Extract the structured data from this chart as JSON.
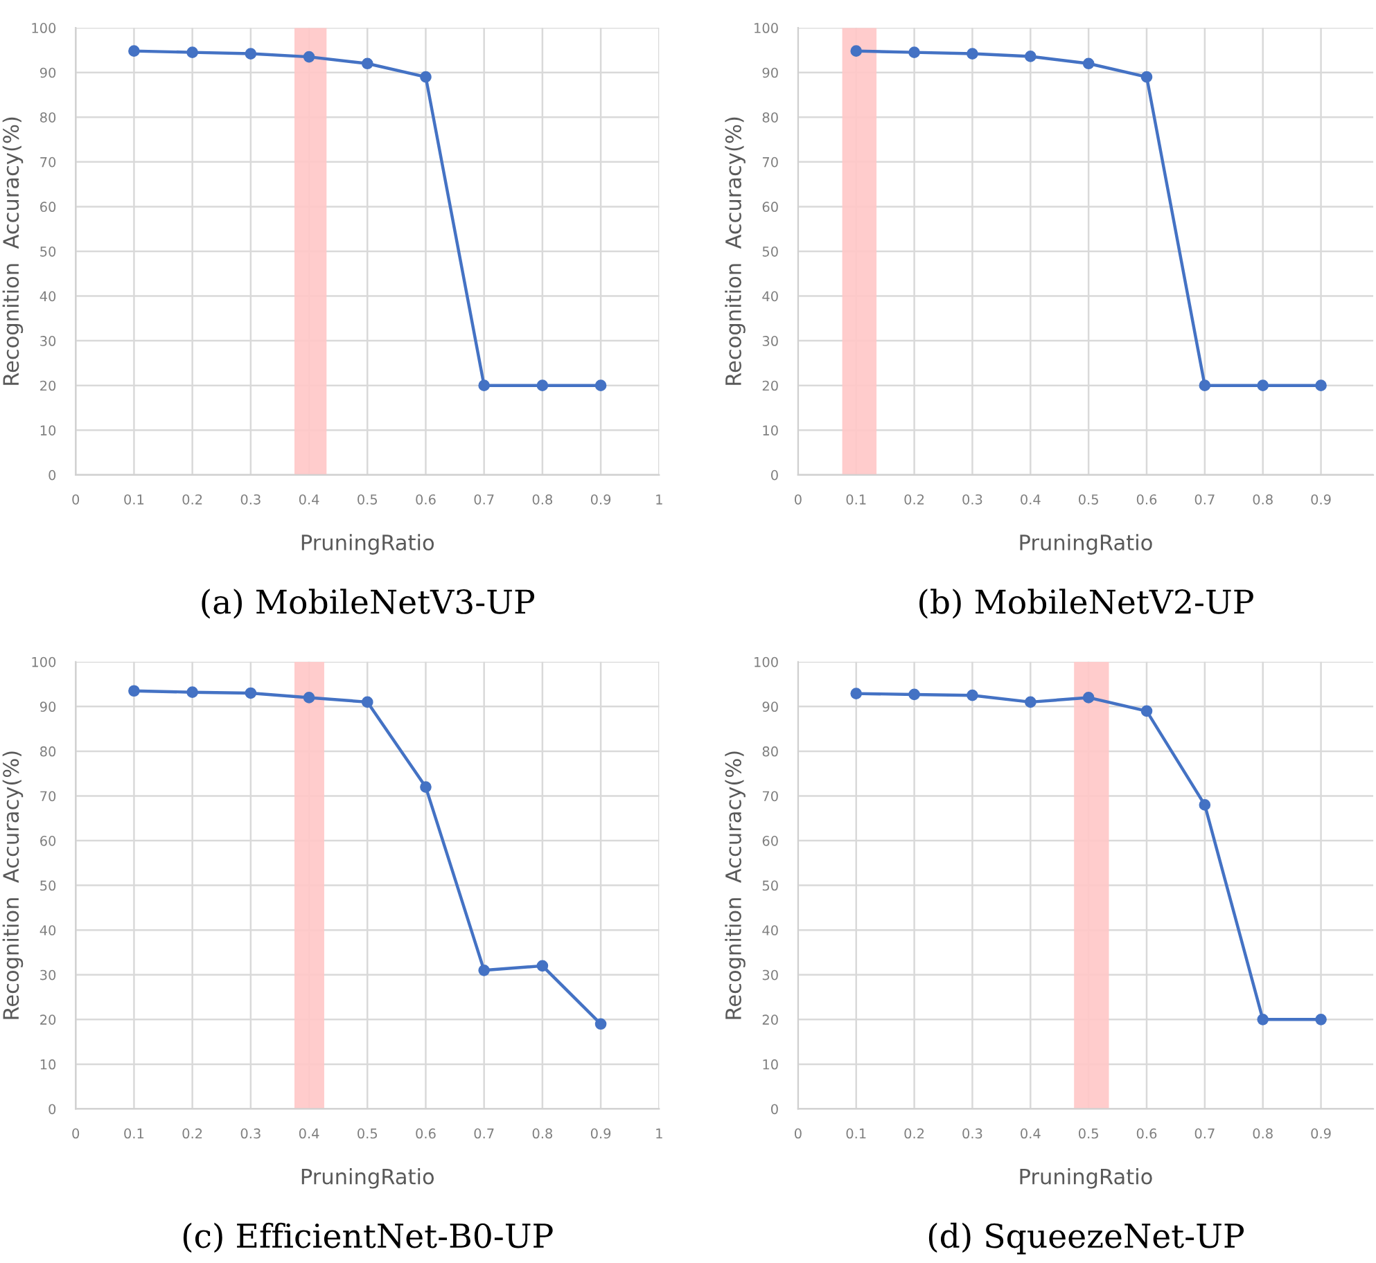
{
  "chart_data": [
    {
      "type": "line",
      "title": "(a) MobileNetV3-UP",
      "xlabel": "PruningRatio",
      "ylabel": "Recognition  Accuracy(%)",
      "x": [
        0.1,
        0.2,
        0.3,
        0.4,
        0.5,
        0.6,
        0.7,
        0.8,
        0.9
      ],
      "series": [
        {
          "color": "#4472c4",
          "values": [
            94.8,
            94.5,
            94.2,
            93.5,
            92,
            89,
            20,
            20,
            20
          ]
        }
      ],
      "xlim": [
        0,
        1
      ],
      "xticks": [
        0,
        0.1,
        0.2,
        0.3,
        0.4,
        0.5,
        0.6,
        0.7,
        0.8,
        0.9,
        1
      ],
      "ylim": [
        0,
        100
      ],
      "yticks": [
        0,
        10,
        20,
        30,
        40,
        50,
        60,
        70,
        80,
        90,
        100
      ],
      "bands": [
        {
          "axis": "x",
          "from": 0.375,
          "to": 0.43,
          "color": "#ffc7c7"
        }
      ],
      "grid": true,
      "marker": "circle",
      "line_style": "solid"
    },
    {
      "type": "line",
      "title": "(b) MobileNetV2-UP",
      "xlabel": "PruningRatio",
      "ylabel": "Recognition  Accuracy(%)",
      "x": [
        0.1,
        0.2,
        0.3,
        0.4,
        0.5,
        0.6,
        0.7,
        0.8,
        0.9
      ],
      "series": [
        {
          "color": "#4472c4",
          "values": [
            94.8,
            94.5,
            94.2,
            93.6,
            92,
            89,
            20,
            20,
            20
          ]
        }
      ],
      "xlim": [
        0,
        0.99
      ],
      "xticks": [
        0,
        0.1,
        0.2,
        0.3,
        0.4,
        0.5,
        0.6,
        0.7,
        0.8,
        0.9
      ],
      "ylim": [
        0,
        100
      ],
      "yticks": [
        0,
        10,
        20,
        30,
        40,
        50,
        60,
        70,
        80,
        90,
        100
      ],
      "bands": [
        {
          "axis": "x",
          "from": 0.076,
          "to": 0.135,
          "color": "#ffc7c7"
        }
      ],
      "grid": true,
      "marker": "circle",
      "line_style": "solid"
    },
    {
      "type": "line",
      "title": "(c) EfficientNet-B0-UP",
      "xlabel": "PruningRatio",
      "ylabel": "Recognition  Accuracy(%)",
      "x": [
        0.1,
        0.2,
        0.3,
        0.4,
        0.5,
        0.6,
        0.7,
        0.8,
        0.9
      ],
      "series": [
        {
          "color": "#4472c4",
          "values": [
            93.5,
            93.2,
            93,
            92,
            91,
            72,
            31,
            32,
            19
          ]
        }
      ],
      "xlim": [
        0,
        1
      ],
      "xticks": [
        0,
        0.1,
        0.2,
        0.3,
        0.4,
        0.5,
        0.6,
        0.7,
        0.8,
        0.9,
        1
      ],
      "ylim": [
        0,
        100
      ],
      "yticks": [
        0,
        10,
        20,
        30,
        40,
        50,
        60,
        70,
        80,
        90,
        100
      ],
      "bands": [
        {
          "axis": "x",
          "from": 0.375,
          "to": 0.426,
          "color": "#ffc7c7"
        }
      ],
      "grid": true,
      "marker": "circle",
      "line_style": "solid"
    },
    {
      "type": "line",
      "title": "(d) SqueezeNet-UP",
      "xlabel": "PruningRatio",
      "ylabel": "Recognition  Accuracy(%)",
      "x": [
        0.1,
        0.2,
        0.3,
        0.4,
        0.5,
        0.6,
        0.7,
        0.8,
        0.9
      ],
      "series": [
        {
          "color": "#4472c4",
          "values": [
            92.9,
            92.7,
            92.5,
            91,
            92,
            89,
            68,
            20,
            20
          ]
        }
      ],
      "xlim": [
        0,
        0.99
      ],
      "xticks": [
        0,
        0.1,
        0.2,
        0.3,
        0.4,
        0.5,
        0.6,
        0.7,
        0.8,
        0.9
      ],
      "ylim": [
        0,
        100
      ],
      "yticks": [
        0,
        10,
        20,
        30,
        40,
        50,
        60,
        70,
        80,
        90,
        100
      ],
      "bands": [
        {
          "axis": "x",
          "from": 0.475,
          "to": 0.535,
          "color": "#ffc7c7"
        }
      ],
      "grid": true,
      "marker": "circle",
      "line_style": "solid"
    }
  ]
}
